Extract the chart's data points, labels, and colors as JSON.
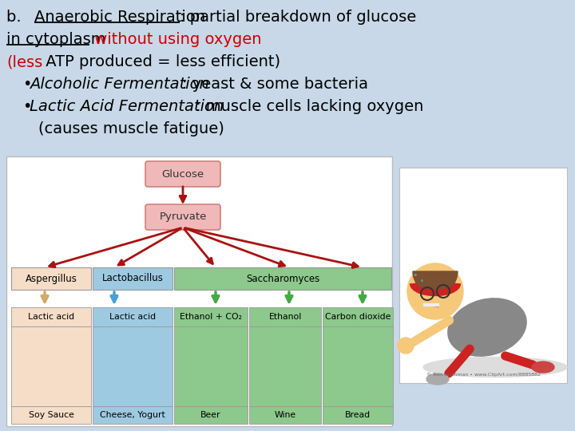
{
  "bg_color": "#c8d8e8",
  "font_size": 14,
  "diagram_bg": "#ffffff",
  "glucose_box_color": "#f0b8b8",
  "pyruvate_box_color": "#f0b8b8",
  "aspergillus_color": "#f5ddc8",
  "lactobacillus_color": "#9ecae1",
  "saccharomyces_color": "#8dc88d",
  "arrow_color": "#aa1111",
  "asp_arrow_color": "#d4a868",
  "lac_arrow_color": "#4a9fd4",
  "sac_arrow_color": "#44aa44",
  "products": [
    "Lactic acid",
    "Lactic acid",
    "Ethanol + CO₂",
    "Ethanol",
    "Carbon dioxide"
  ],
  "foods": [
    "Soy Sauce",
    "Cheese, Yogurt",
    "Beer",
    "Wine",
    "Bread"
  ],
  "line1_b": "b.  ",
  "line1_underline": "Anaerobic Respiration",
  "line1_rest": ": partial breakdown of glucose",
  "line2_underline": "in cytoplasm",
  "line2_red": " without using oxygen",
  "line3_red": "(less",
  "line3_black": " ATP produced = less efficient)",
  "bullet1_italic": "Alcoholic Fermentation",
  "bullet1_rest": ": yeast & some bacteria",
  "bullet2_italic": "Lactic Acid Fermentation",
  "bullet2_rest": ": muscle cells lacking oxygen",
  "line_indent": "(causes muscle fatigue)"
}
